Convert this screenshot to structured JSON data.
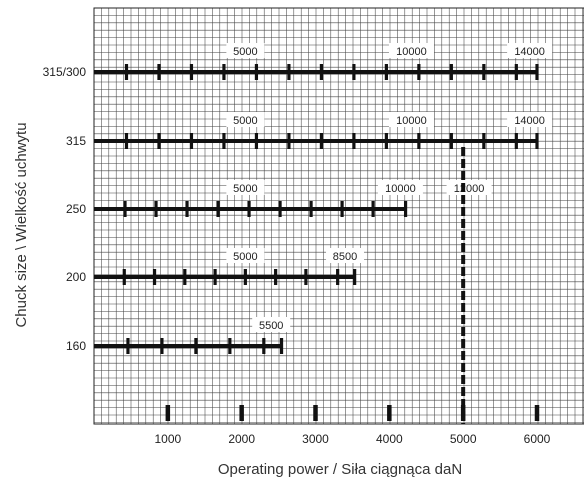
{
  "chart_data": {
    "type": "line",
    "title": "",
    "xlabel": "Operating power / Siła ciągnąca   daN",
    "ylabel": "Chuck size \\ Wielkość uchwytu",
    "xlim": [
      0,
      6450
    ],
    "x_ticks": [
      1000,
      2000,
      3000,
      4000,
      5000,
      6000
    ],
    "categories": [
      "315/300",
      "315",
      "250",
      "200",
      "160"
    ],
    "grid": true,
    "series": [
      {
        "category": "315/300",
        "x_end": 6000,
        "tick_marks": [
          440,
          880,
          1320,
          1760,
          2200,
          2640,
          3080,
          3520,
          3960,
          4400,
          4840,
          5280,
          5720,
          6000
        ],
        "labels": [
          {
            "text": "5000",
            "x": 2050
          },
          {
            "text": "10000",
            "x": 4300
          },
          {
            "text": "14000",
            "x": 5900
          }
        ]
      },
      {
        "category": "315",
        "x_end": 6000,
        "tick_marks": [
          440,
          880,
          1320,
          1760,
          2200,
          2640,
          3080,
          3520,
          3960,
          4400,
          4840,
          5280,
          5720,
          6000
        ],
        "labels": [
          {
            "text": "5000",
            "x": 2050
          },
          {
            "text": "10000",
            "x": 4300
          },
          {
            "text": "14000",
            "x": 5900
          }
        ]
      },
      {
        "category": "250",
        "x_end": 4220,
        "tick_marks": [
          420,
          840,
          1260,
          1680,
          2100,
          2520,
          2940,
          3360,
          3780,
          4220
        ],
        "labels": [
          {
            "text": "5000",
            "x": 2050
          },
          {
            "text": "10000",
            "x": 4150
          },
          {
            "text": "12000",
            "x": 5080
          }
        ]
      },
      {
        "category": "200",
        "x_end": 3530,
        "tick_marks": [
          410,
          820,
          1230,
          1640,
          2050,
          2460,
          2870,
          3300,
          3530
        ],
        "labels": [
          {
            "text": "5000",
            "x": 2050
          },
          {
            "text": "8500",
            "x": 3400
          }
        ]
      },
      {
        "category": "160",
        "x_end": 2540,
        "tick_marks": [
          460,
          920,
          1380,
          1840,
          2300,
          2540
        ],
        "labels": [
          {
            "text": "5500",
            "x": 2400
          }
        ]
      }
    ],
    "vertical_marker": {
      "x": 5000,
      "from": "315",
      "to": "axis"
    },
    "bottom_marks": [
      1000,
      2000,
      3000,
      4000,
      5000,
      6000
    ]
  }
}
